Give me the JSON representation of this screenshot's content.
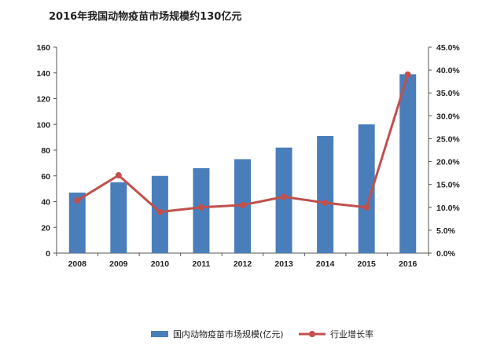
{
  "chart_data": {
    "type": "bar",
    "title": "2016年我国动物疫苗市场规模约130亿元",
    "categories": [
      "2008",
      "2009",
      "2010",
      "2011",
      "2012",
      "2013",
      "2014",
      "2015",
      "2016"
    ],
    "series": [
      {
        "name": "国内动物疫苗市场规模(亿元)",
        "type": "bar",
        "axis": "left",
        "values": [
          47,
          55,
          60,
          66,
          73,
          82,
          91,
          100,
          139
        ],
        "color": "#4a7ebb"
      },
      {
        "name": "行业增长率",
        "type": "line",
        "axis": "right",
        "values": [
          11.5,
          17.0,
          9.0,
          10.0,
          10.5,
          12.3,
          11.0,
          10.0,
          39.0
        ],
        "color": "#c0504d"
      }
    ],
    "y_left": {
      "ylim": [
        0,
        160
      ],
      "ticks": [
        "0",
        "20",
        "40",
        "60",
        "80",
        "100",
        "120",
        "140",
        "160"
      ]
    },
    "y_right": {
      "ylim": [
        0,
        45
      ],
      "ticks": [
        "0.0%",
        "5.0%",
        "10.0%",
        "15.0%",
        "20.0%",
        "25.0%",
        "30.0%",
        "35.0%",
        "40.0%",
        "45.0%"
      ]
    },
    "grid": false,
    "legend": "bottom"
  }
}
